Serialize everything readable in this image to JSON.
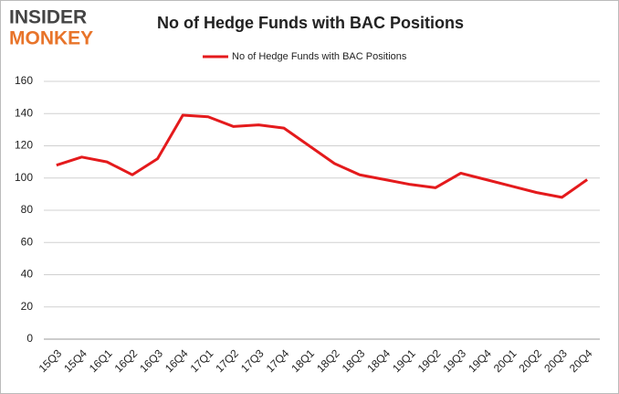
{
  "logo": {
    "line1": "INSIDER",
    "line2": "MONKEY"
  },
  "chart_data": {
    "type": "line",
    "title": "No of Hedge Funds with BAC Positions",
    "categories": [
      "15Q3",
      "15Q4",
      "16Q1",
      "16Q2",
      "16Q3",
      "16Q4",
      "17Q1",
      "17Q2",
      "17Q3",
      "17Q4",
      "18Q1",
      "18Q2",
      "18Q3",
      "18Q4",
      "19Q1",
      "19Q2",
      "19Q3",
      "19Q4",
      "20Q1",
      "20Q2",
      "20Q3",
      "20Q4"
    ],
    "series": [
      {
        "name": "No of Hedge Funds with BAC Positions",
        "color": "#e41a1c",
        "values": [
          108,
          113,
          110,
          102,
          112,
          139,
          138,
          132,
          133,
          131,
          120,
          109,
          102,
          99,
          96,
          94,
          103,
          99,
          95,
          91,
          88,
          99
        ]
      }
    ],
    "ylim": [
      0,
      160
    ],
    "yticks": [
      0,
      20,
      40,
      60,
      80,
      100,
      120,
      140,
      160
    ],
    "grid": true,
    "legend": "top"
  }
}
